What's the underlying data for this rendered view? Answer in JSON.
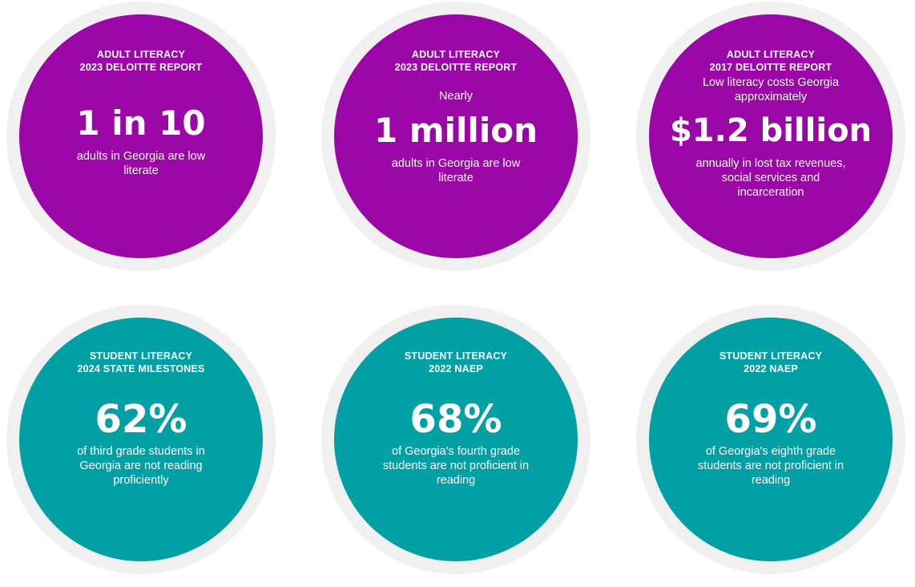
{
  "stats": [
    {
      "label_line1": "ADULT LITERACY",
      "label_line2": "2023 DELOITTE REPORT",
      "prefix": "",
      "value": "1 in 10",
      "description": "adults in Georgia are low literate"
    },
    {
      "label_line1": "ADULT LITERACY",
      "label_line2": "2023 DELOITTE REPORT",
      "prefix": "Nearly",
      "value": "1 million",
      "description": "adults in Georgia are low literate"
    },
    {
      "label_line1": "ADULT LITERACY",
      "label_line2": "2017 DELOITTE REPORT",
      "prefix": "Low literacy costs Georgia approximately",
      "value": "$1.2 billion",
      "description": "annually in lost tax revenues, social services and incarceration"
    },
    {
      "label_line1": "STUDENT LITERACY",
      "label_line2": "2024 STATE MILESTONES",
      "prefix": "",
      "value": "62%",
      "description": "of third grade students in Georgia are not reading proficiently"
    },
    {
      "label_line1": "STUDENT LITERACY",
      "label_line2": "2022 NAEP",
      "prefix": "",
      "value": "68%",
      "description": "of Georgia's fourth grade students are not proficient in reading"
    },
    {
      "label_line1": "STUDENT LITERACY",
      "label_line2": "2022 NAEP",
      "prefix": "",
      "value": "69%",
      "description": "of Georgia's eighth grade students are not proficient in reading"
    }
  ],
  "colors": {
    "adult_circle": "#9b06a6",
    "student_circle": "#00a0a4",
    "ring": "#f0f0f0",
    "text": "#ffffff"
  }
}
